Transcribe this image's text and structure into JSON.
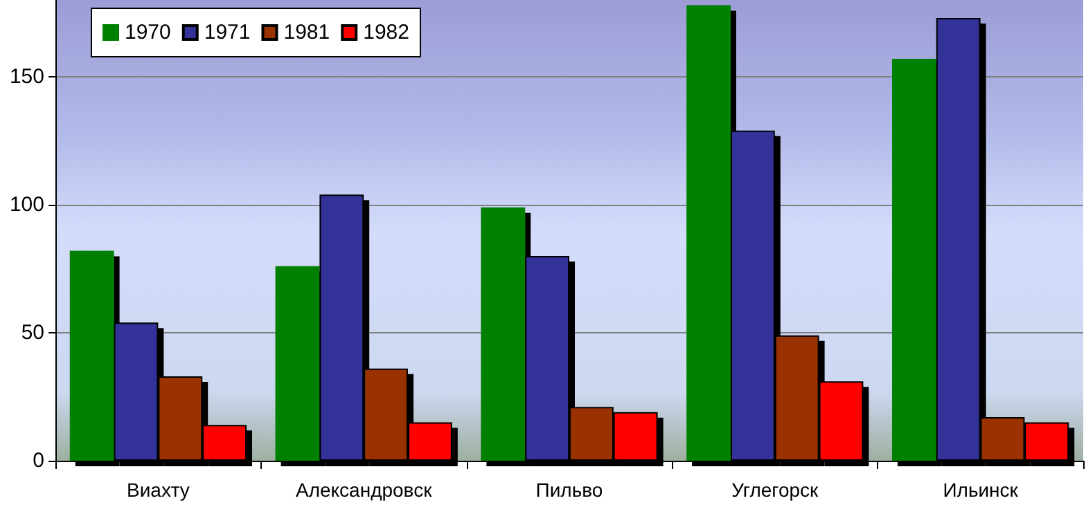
{
  "chart_data": {
    "type": "bar",
    "categories": [
      "Виахту",
      "Александровск",
      "Пильво",
      "Углегорск",
      "Ильинск"
    ],
    "series": [
      {
        "name": "1970",
        "color": "#008000",
        "values": [
          82,
          76,
          99,
          178,
          157
        ]
      },
      {
        "name": "1971",
        "color": "#333399",
        "values": [
          54,
          104,
          80,
          129,
          173
        ]
      },
      {
        "name": "1981",
        "color": "#993300",
        "values": [
          33,
          36,
          21,
          49,
          17
        ]
      },
      {
        "name": "1982",
        "color": "#ff0000",
        "values": [
          14,
          15,
          19,
          31,
          15
        ]
      }
    ],
    "ylim": [
      0,
      180
    ],
    "yticks": [
      0,
      50,
      100,
      150
    ],
    "grid": "y",
    "legend": "top left"
  }
}
